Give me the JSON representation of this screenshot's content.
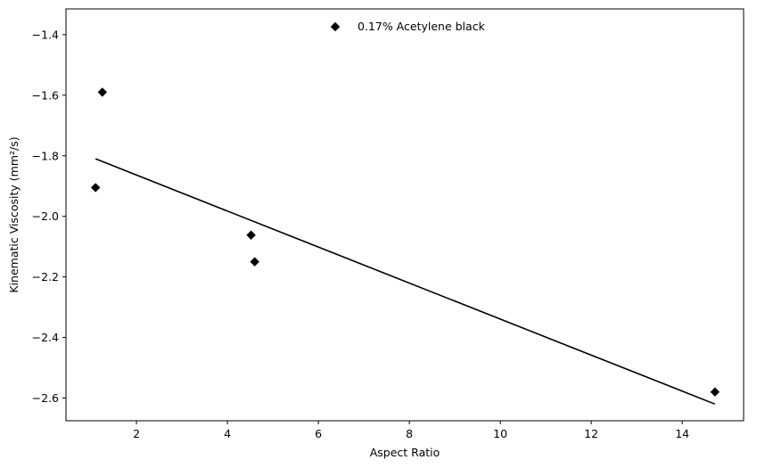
{
  "chart_data": {
    "type": "scatter",
    "title": "",
    "xlabel": "Aspect Ratio",
    "ylabel": "Kinematic Viscosity (mm²/s)",
    "xlim": [
      0.45,
      15.35
    ],
    "ylim": [
      -2.675,
      -1.315
    ],
    "xticks": [
      2,
      4,
      6,
      8,
      10,
      12,
      14
    ],
    "yticks": [
      -2.6,
      -2.4,
      -2.2,
      -2.0,
      -1.8,
      -1.6,
      -1.4
    ],
    "xtick_labels": [
      "2",
      "4",
      "6",
      "8",
      "10",
      "12",
      "14"
    ],
    "ytick_labels": [
      "−2.6",
      "−2.4",
      "−2.2",
      "−2.0",
      "−1.8",
      "−1.6",
      "−1.4"
    ],
    "grid": false,
    "legend_position": "top-center",
    "series": [
      {
        "name": "0.17% Acetylene black",
        "marker": "diamond",
        "color": "#000000",
        "points": [
          {
            "x": 1.1,
            "y": -1.905
          },
          {
            "x": 1.25,
            "y": -1.59
          },
          {
            "x": 4.52,
            "y": -2.062
          },
          {
            "x": 4.6,
            "y": -2.15
          },
          {
            "x": 14.72,
            "y": -2.58
          }
        ]
      }
    ],
    "fit_line": {
      "color": "#000000",
      "points": [
        {
          "x": 1.1,
          "y": -1.81
        },
        {
          "x": 14.72,
          "y": -2.62
        }
      ]
    }
  }
}
